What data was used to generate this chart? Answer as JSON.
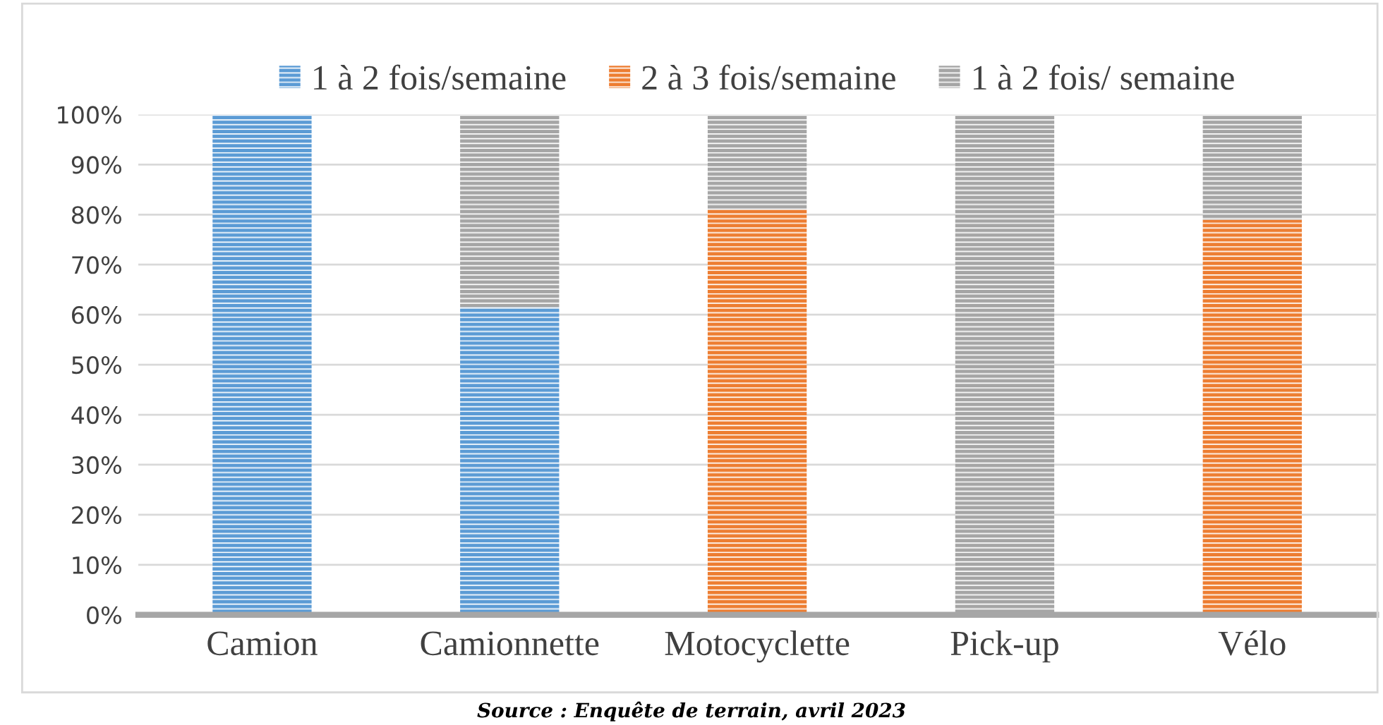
{
  "chart_data": {
    "type": "bar",
    "stacked": true,
    "categories": [
      "Camion",
      "Camionnette",
      "Motocyclette",
      "Pick-up",
      "Vélo"
    ],
    "series": [
      {
        "name": "1 à 2 fois/semaine",
        "color": "#5b9bd5",
        "values": [
          100,
          61.5,
          0,
          0,
          0
        ]
      },
      {
        "name": "2 à 3 fois/semaine",
        "color": "#ed7d31",
        "values": [
          0,
          0,
          81,
          0,
          79
        ]
      },
      {
        "name": "1 à 2 fois/ semaine",
        "color": "#a5a5a5",
        "values": [
          0,
          38.5,
          19,
          100,
          21
        ]
      }
    ],
    "ylim": [
      0,
      100
    ],
    "yticks": [
      {
        "value": 0,
        "label": "0%"
      },
      {
        "value": 10,
        "label": "10%"
      },
      {
        "value": 20,
        "label": "20%"
      },
      {
        "value": 30,
        "label": "30%"
      },
      {
        "value": 40,
        "label": "40%"
      },
      {
        "value": 50,
        "label": "50%"
      },
      {
        "value": 60,
        "label": "60%"
      },
      {
        "value": 70,
        "label": "70%"
      },
      {
        "value": 80,
        "label": "80%"
      },
      {
        "value": 90,
        "label": "90%"
      },
      {
        "value": 100,
        "label": "100%"
      }
    ],
    "grid": "y",
    "legend": "top",
    "annotations": [
      "Source : Enquête de terrain, avril 2023"
    ]
  }
}
